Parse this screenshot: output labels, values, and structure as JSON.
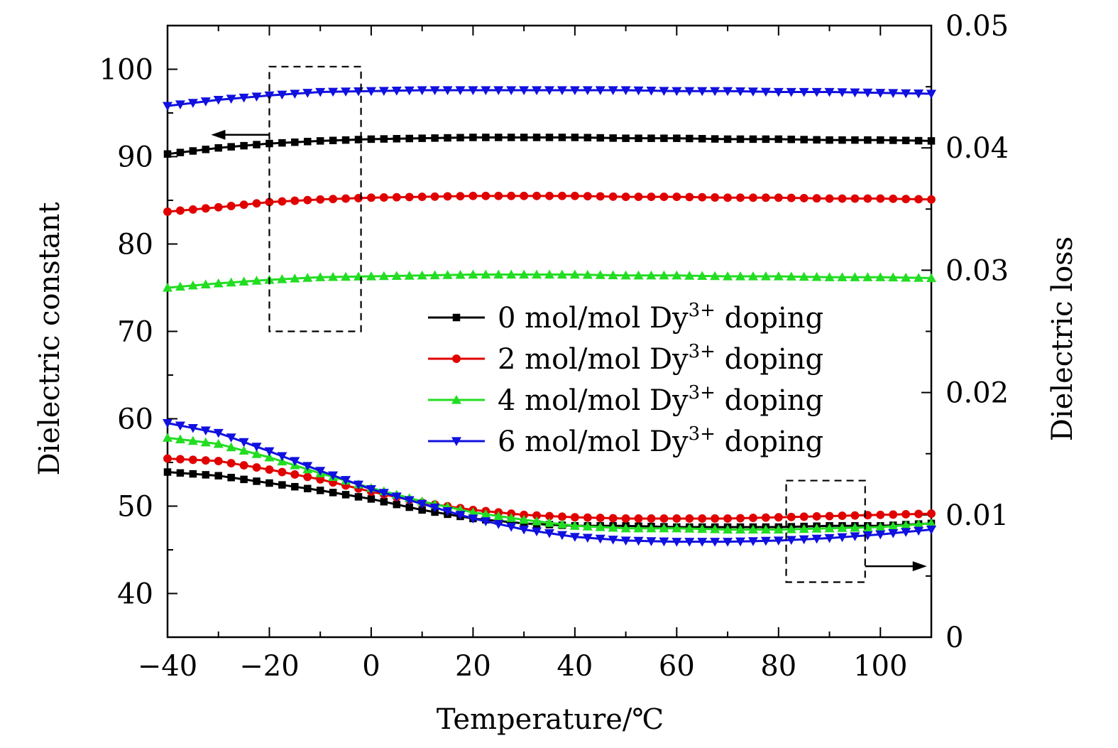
{
  "chart_data": {
    "type": "line",
    "xlabel": "Temperature/℃",
    "ylabel_left": "Dielectric constant",
    "ylabel_right": "Dielectric loss",
    "xlim": [
      -40,
      110
    ],
    "ylim_left": [
      35,
      105
    ],
    "ylim_right": [
      0,
      0.05
    ],
    "x_ticks": [
      -40,
      -20,
      0,
      20,
      40,
      60,
      80,
      100
    ],
    "x_tick_labels": [
      "−40",
      "−20",
      "0",
      "20",
      "40",
      "60",
      "80",
      "100"
    ],
    "y_left_ticks": [
      40,
      50,
      60,
      70,
      80,
      90,
      100
    ],
    "y_left_tick_labels": [
      "40",
      "50",
      "60",
      "70",
      "80",
      "90",
      "100"
    ],
    "y_right_ticks": [
      0,
      0.01,
      0.02,
      0.03,
      0.04,
      0.05
    ],
    "y_right_tick_labels": [
      "0",
      "0.01",
      "0.02",
      "0.03",
      "0.04",
      "0.05"
    ],
    "legend_position": "center-right",
    "legend_label_parts": {
      "prefix": "mol/mol Dy",
      "superscript": "3+",
      "suffix": "doping"
    },
    "x": [
      -40,
      -30,
      -20,
      -10,
      0,
      10,
      20,
      30,
      40,
      50,
      60,
      70,
      80,
      90,
      100,
      110
    ],
    "series": [
      {
        "name": "0 mol/mol Dy3+ doping",
        "legend_number": "0",
        "color": "#000000",
        "marker": "square",
        "constant": [
          90.3,
          91.0,
          91.5,
          91.8,
          92.0,
          92.1,
          92.2,
          92.2,
          92.2,
          92.1,
          92.1,
          92.0,
          92.0,
          91.9,
          91.9,
          91.8
        ],
        "loss": [
          0.0135,
          0.0132,
          0.0126,
          0.012,
          0.0113,
          0.0104,
          0.0097,
          0.0093,
          0.0091,
          0.0091,
          0.009,
          0.009,
          0.009,
          0.0091,
          0.0091,
          0.0093
        ]
      },
      {
        "name": "2 mol/mol Dy3+ doping",
        "legend_number": "2",
        "color": "#e00000",
        "marker": "circle",
        "constant": [
          83.7,
          84.2,
          84.8,
          85.1,
          85.3,
          85.4,
          85.5,
          85.5,
          85.5,
          85.4,
          85.4,
          85.3,
          85.3,
          85.2,
          85.2,
          85.1
        ],
        "loss": [
          0.0146,
          0.0144,
          0.0137,
          0.0129,
          0.0119,
          0.011,
          0.0104,
          0.01,
          0.0098,
          0.0097,
          0.0097,
          0.0097,
          0.0098,
          0.0099,
          0.01,
          0.0101
        ]
      },
      {
        "name": "4 mol/mol Dy3+ doping",
        "legend_number": "4",
        "color": "#22dd22",
        "marker": "triangle-up",
        "constant": [
          75.0,
          75.5,
          75.9,
          76.2,
          76.3,
          76.4,
          76.5,
          76.5,
          76.5,
          76.4,
          76.4,
          76.3,
          76.3,
          76.2,
          76.2,
          76.1
        ],
        "loss": [
          0.0163,
          0.0158,
          0.0147,
          0.0134,
          0.0122,
          0.0111,
          0.0102,
          0.0096,
          0.0091,
          0.0089,
          0.0089,
          0.0088,
          0.0088,
          0.0089,
          0.009,
          0.0093
        ]
      },
      {
        "name": "6 mol/mol Dy3+ doping",
        "legend_number": "6",
        "color": "#1010e0",
        "marker": "triangle-down",
        "constant": [
          95.8,
          96.5,
          97.0,
          97.4,
          97.5,
          97.6,
          97.6,
          97.6,
          97.6,
          97.6,
          97.5,
          97.5,
          97.4,
          97.4,
          97.3,
          97.2
        ],
        "loss": [
          0.0175,
          0.0167,
          0.0152,
          0.0136,
          0.0121,
          0.0109,
          0.0097,
          0.0088,
          0.0082,
          0.0079,
          0.0078,
          0.0078,
          0.0079,
          0.0081,
          0.0084,
          0.0088
        ]
      }
    ],
    "annotations": [
      {
        "type": "dashed-box",
        "x_range": [
          -20,
          -2
        ],
        "y_range_left": [
          70,
          100.3
        ],
        "note": "encloses dielectric-constant curves"
      },
      {
        "type": "arrow",
        "direction": "left",
        "points_to": "left axis",
        "anchored_x": -20,
        "anchored_y_left": 92.5
      },
      {
        "type": "dashed-box",
        "x_range": [
          81.5,
          97
        ],
        "y_range_right": [
          0.0045,
          0.0128
        ],
        "note": "encloses dielectric-loss curves"
      },
      {
        "type": "arrow",
        "direction": "right",
        "points_to": "right axis",
        "anchored_x": 97,
        "anchored_y_right": 0.0058
      }
    ]
  }
}
